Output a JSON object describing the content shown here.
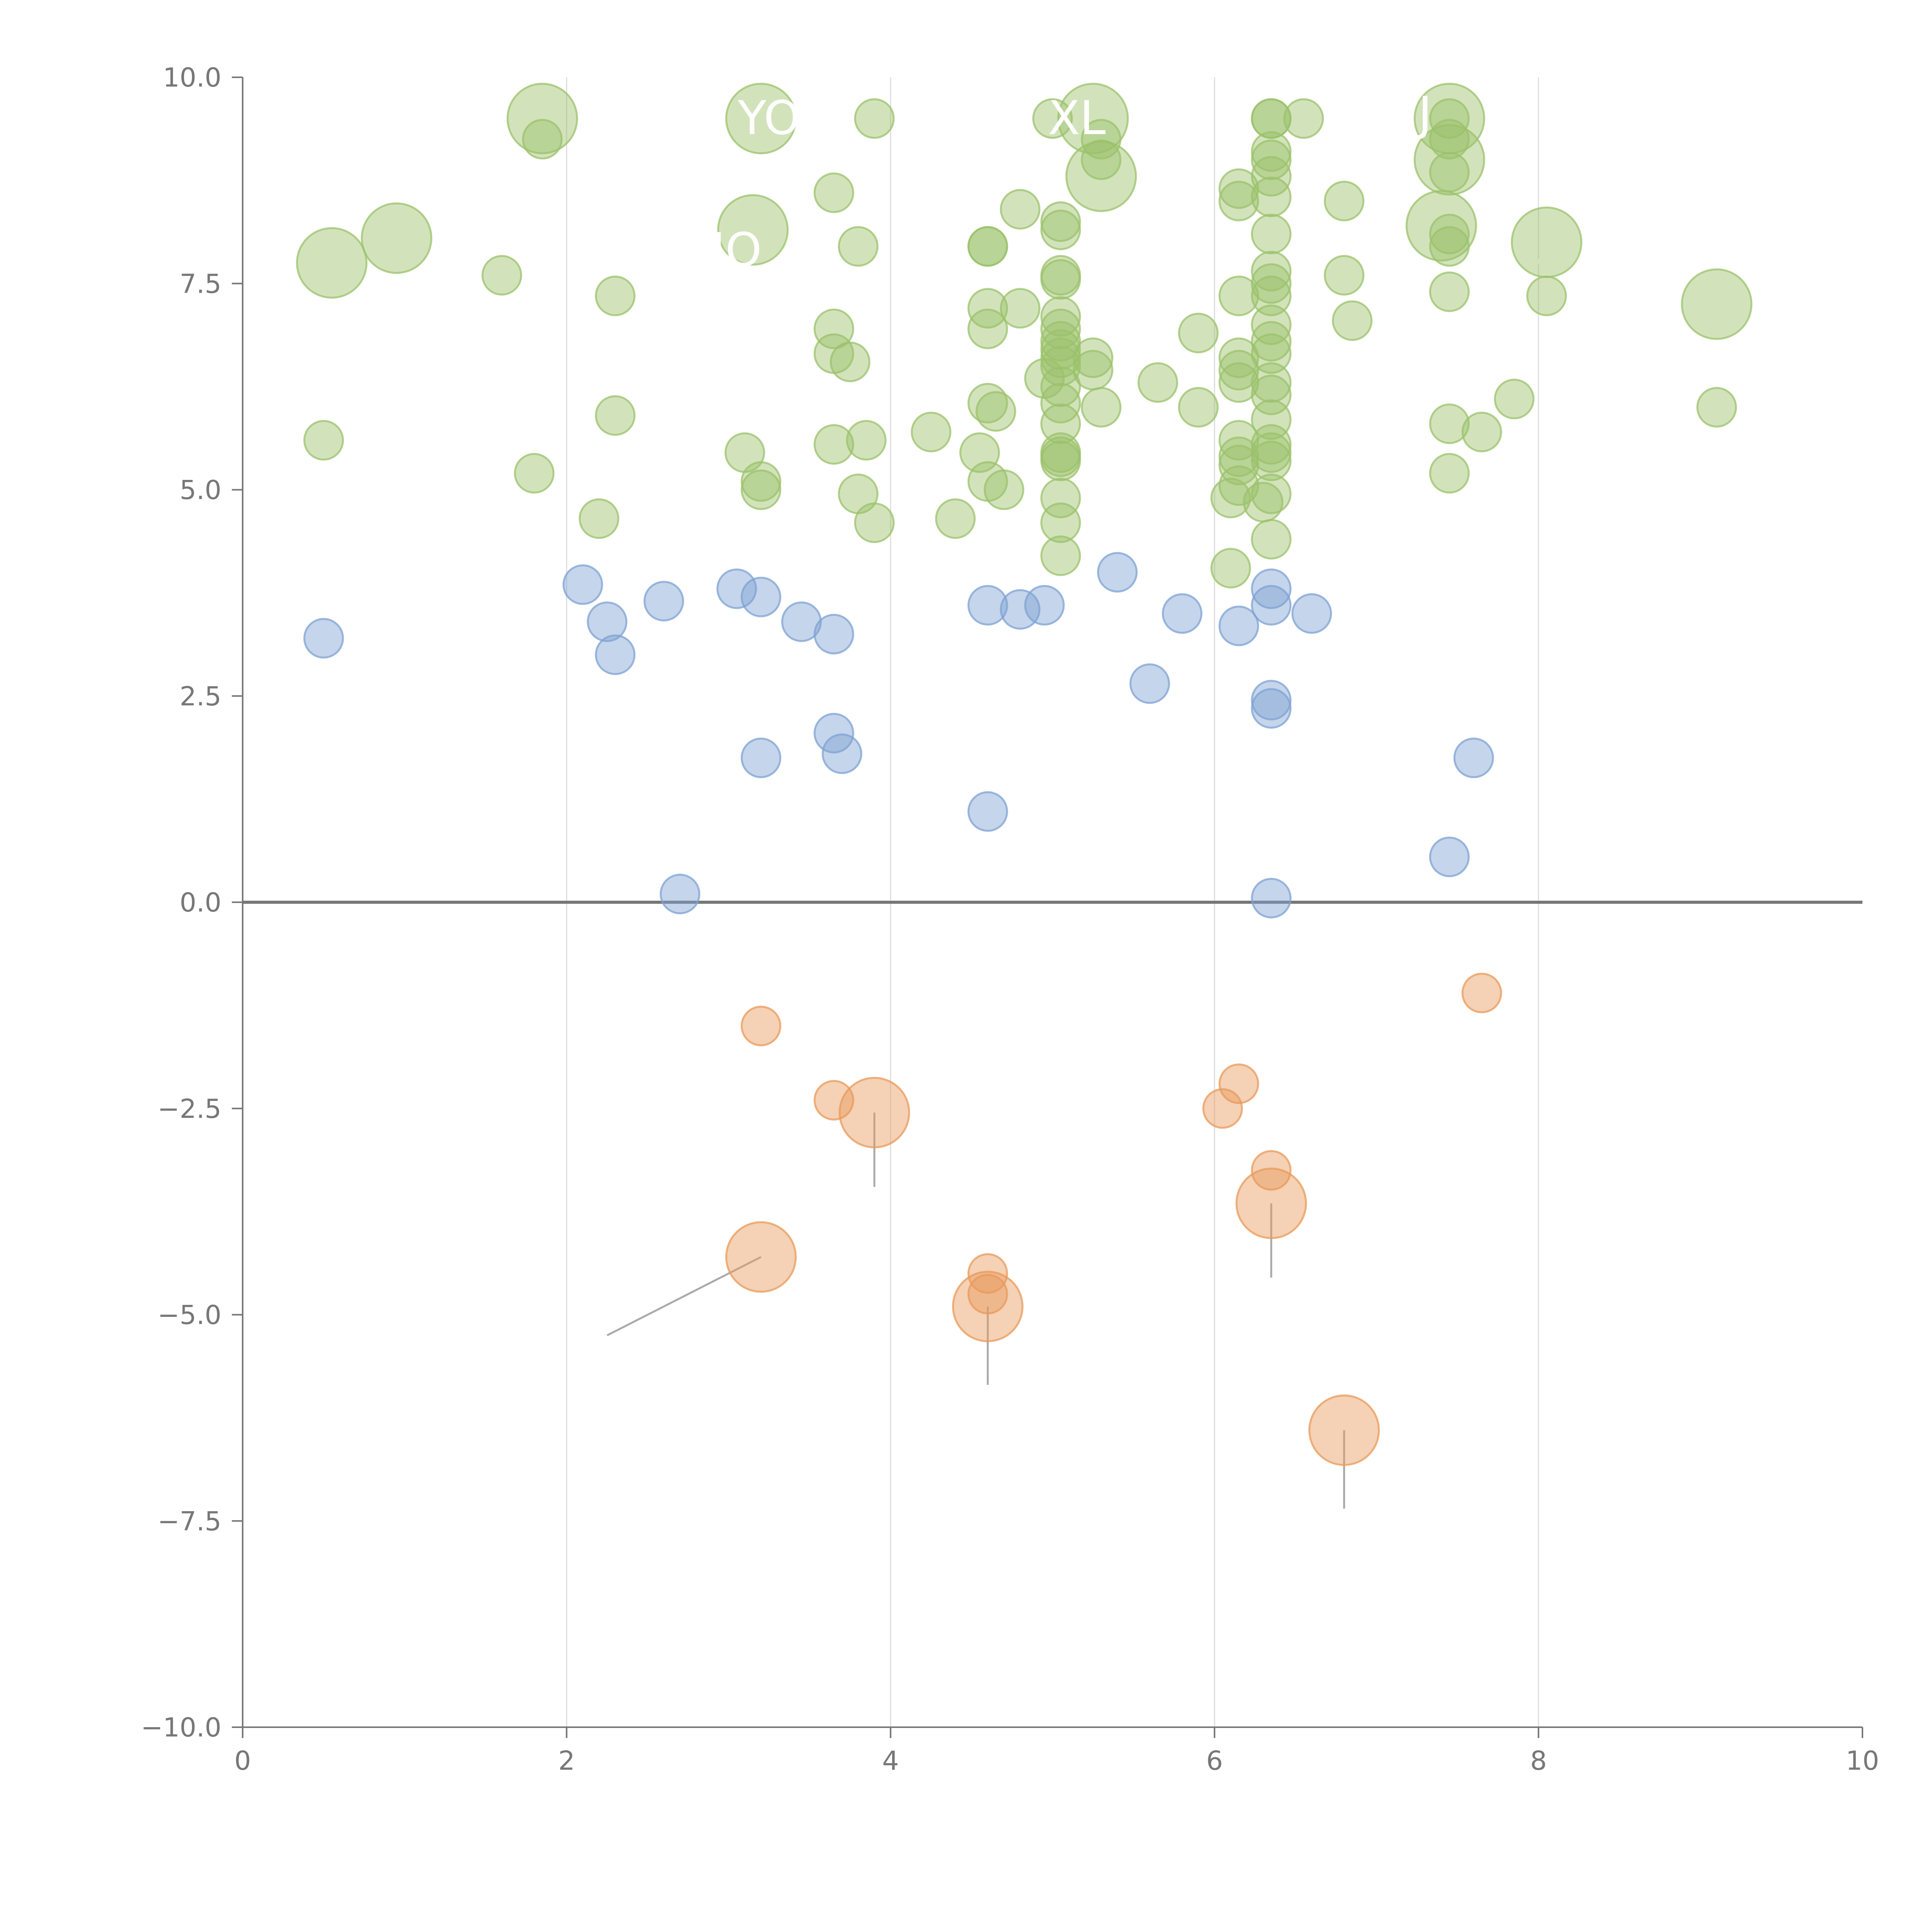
{
  "chart_data": {
    "type": "scatter",
    "title": "",
    "xlabel": "",
    "ylabel": "",
    "xlim": [
      0,
      10
    ],
    "ylim": [
      -10,
      10
    ],
    "x_ticks": [
      0,
      2,
      4,
      6,
      8,
      10
    ],
    "y_ticks": [
      -10.0,
      -7.5,
      -5.0,
      -2.5,
      0.0,
      2.5,
      5.0,
      7.5,
      10.0
    ],
    "x_tick_labels": [
      "0",
      "2",
      "4",
      "6",
      "8",
      "10"
    ],
    "y_tick_labels": [
      "−10.0",
      "−7.5",
      "−5.0",
      "−2.5",
      "0.0",
      "2.5",
      "5.0",
      "7.5",
      "10.0"
    ],
    "grid": "vertical",
    "zero_line": 0,
    "colors": {
      "green": "#9bc26b",
      "blue": "#7ea1d3",
      "orange": "#e8995a",
      "axis": "#777777",
      "grid": "#dddddd",
      "leader": "#aaaaaa",
      "leader_light": "#ffffff"
    },
    "series": [
      {
        "name": "green",
        "color": "#9bc26b",
        "points": [
          [
            1.85,
            9.5,
            2
          ],
          [
            3.2,
            9.5,
            2
          ],
          [
            5.25,
            9.5,
            2
          ],
          [
            7.45,
            9.5,
            2
          ],
          [
            0.55,
            7.75,
            2
          ],
          [
            0.95,
            8.05,
            2
          ],
          [
            3.15,
            8.15,
            2
          ],
          [
            5.3,
            8.8,
            2
          ],
          [
            7.4,
            8.2,
            2
          ],
          [
            7.45,
            9.0,
            2
          ],
          [
            8.05,
            8.0,
            2
          ],
          [
            9.1,
            7.25,
            2
          ],
          [
            1.85,
            9.25,
            1
          ],
          [
            3.9,
            9.5,
            1
          ],
          [
            5.0,
            9.5,
            1
          ],
          [
            5.3,
            9.25,
            1
          ],
          [
            5.3,
            9.0,
            1
          ],
          [
            6.35,
            9.5,
            1
          ],
          [
            6.35,
            9.5,
            1
          ],
          [
            6.55,
            9.5,
            1
          ],
          [
            7.45,
            9.5,
            1
          ],
          [
            7.45,
            9.25,
            1
          ],
          [
            6.35,
            9.1,
            1
          ],
          [
            6.35,
            9.0,
            1
          ],
          [
            6.35,
            8.8,
            1
          ],
          [
            6.35,
            8.55,
            1
          ],
          [
            6.15,
            8.65,
            1
          ],
          [
            6.15,
            8.5,
            1
          ],
          [
            6.8,
            8.5,
            1
          ],
          [
            7.45,
            8.85,
            1
          ],
          [
            3.65,
            8.6,
            1
          ],
          [
            4.8,
            8.4,
            1
          ],
          [
            5.05,
            8.25,
            1
          ],
          [
            5.05,
            8.15,
            1
          ],
          [
            6.35,
            8.1,
            1
          ],
          [
            7.45,
            8.1,
            1
          ],
          [
            7.45,
            7.95,
            1
          ],
          [
            1.6,
            7.6,
            1
          ],
          [
            2.3,
            7.35,
            1
          ],
          [
            3.8,
            7.95,
            1
          ],
          [
            4.6,
            7.95,
            1
          ],
          [
            4.6,
            7.95,
            1
          ],
          [
            5.05,
            7.6,
            1
          ],
          [
            5.05,
            7.55,
            1
          ],
          [
            6.15,
            7.35,
            1
          ],
          [
            6.35,
            7.65,
            1
          ],
          [
            6.35,
            7.5,
            1
          ],
          [
            6.35,
            7.35,
            1
          ],
          [
            6.8,
            7.6,
            1
          ],
          [
            7.45,
            7.4,
            1
          ],
          [
            8.05,
            7.35,
            1
          ],
          [
            4.6,
            7.2,
            1
          ],
          [
            4.8,
            7.2,
            1
          ],
          [
            5.05,
            7.1,
            1
          ],
          [
            5.05,
            6.95,
            1
          ],
          [
            5.05,
            6.8,
            1
          ],
          [
            5.05,
            6.7,
            1
          ],
          [
            6.35,
            7.0,
            1
          ],
          [
            6.85,
            7.05,
            1
          ],
          [
            3.65,
            6.95,
            1
          ],
          [
            4.6,
            6.95,
            1
          ],
          [
            5.9,
            6.9,
            1
          ],
          [
            3.65,
            6.65,
            1
          ],
          [
            3.75,
            6.55,
            1
          ],
          [
            5.05,
            6.6,
            1
          ],
          [
            5.05,
            6.5,
            1
          ],
          [
            5.25,
            6.6,
            1
          ],
          [
            5.25,
            6.45,
            1
          ],
          [
            6.15,
            6.6,
            1
          ],
          [
            6.15,
            6.45,
            1
          ],
          [
            6.15,
            6.3,
            1
          ],
          [
            6.35,
            6.8,
            1
          ],
          [
            6.35,
            6.65,
            1
          ],
          [
            6.35,
            6.3,
            1
          ],
          [
            6.35,
            6.15,
            1
          ],
          [
            4.95,
            6.35,
            1
          ],
          [
            5.05,
            6.25,
            1
          ],
          [
            5.05,
            6.05,
            1
          ],
          [
            5.65,
            6.3,
            1
          ],
          [
            5.3,
            6.0,
            1
          ],
          [
            5.9,
            6.0,
            1
          ],
          [
            4.6,
            6.05,
            1
          ],
          [
            4.65,
            5.95,
            1
          ],
          [
            7.85,
            6.1,
            1
          ],
          [
            9.1,
            6.0,
            1
          ],
          [
            2.3,
            5.9,
            1
          ],
          [
            5.05,
            5.8,
            1
          ],
          [
            6.35,
            5.85,
            1
          ],
          [
            7.45,
            5.8,
            1
          ],
          [
            7.65,
            5.7,
            1
          ],
          [
            4.25,
            5.7,
            1
          ],
          [
            0.5,
            5.6,
            1
          ],
          [
            3.85,
            5.6,
            1
          ],
          [
            6.15,
            5.6,
            1
          ],
          [
            6.35,
            5.55,
            1
          ],
          [
            6.35,
            5.45,
            1
          ],
          [
            3.1,
            5.45,
            1
          ],
          [
            3.65,
            5.55,
            1
          ],
          [
            4.55,
            5.45,
            1
          ],
          [
            5.05,
            5.45,
            1
          ],
          [
            5.05,
            5.4,
            1
          ],
          [
            5.05,
            5.35,
            1
          ],
          [
            6.15,
            5.4,
            1
          ],
          [
            6.15,
            5.3,
            1
          ],
          [
            6.35,
            5.35,
            1
          ],
          [
            1.8,
            5.2,
            1
          ],
          [
            3.2,
            5.1,
            1
          ],
          [
            3.2,
            5.0,
            1
          ],
          [
            4.6,
            5.1,
            1
          ],
          [
            4.7,
            5.0,
            1
          ],
          [
            3.8,
            4.95,
            1
          ],
          [
            5.05,
            4.9,
            1
          ],
          [
            6.1,
            4.9,
            1
          ],
          [
            6.15,
            5.05,
            1
          ],
          [
            6.35,
            4.95,
            1
          ],
          [
            6.3,
            4.85,
            1
          ],
          [
            7.45,
            5.2,
            1
          ],
          [
            2.2,
            4.65,
            1
          ],
          [
            3.9,
            4.6,
            1
          ],
          [
            4.4,
            4.65,
            1
          ],
          [
            5.05,
            4.6,
            1
          ],
          [
            6.35,
            4.4,
            1
          ],
          [
            5.05,
            4.2,
            1
          ],
          [
            6.1,
            4.05,
            1
          ]
        ]
      },
      {
        "name": "blue",
        "color": "#7ea1d3",
        "points": [
          [
            2.1,
            3.85,
            1
          ],
          [
            5.4,
            4.0,
            1
          ],
          [
            3.05,
            3.8,
            1
          ],
          [
            3.2,
            3.7,
            1
          ],
          [
            6.35,
            3.8,
            1
          ],
          [
            6.35,
            3.6,
            1
          ],
          [
            2.6,
            3.65,
            1
          ],
          [
            4.6,
            3.6,
            1
          ],
          [
            4.8,
            3.55,
            1
          ],
          [
            4.95,
            3.6,
            1
          ],
          [
            5.8,
            3.5,
            1
          ],
          [
            6.6,
            3.5,
            1
          ],
          [
            2.25,
            3.4,
            1
          ],
          [
            3.45,
            3.4,
            1
          ],
          [
            6.15,
            3.35,
            1
          ],
          [
            3.65,
            3.25,
            1
          ],
          [
            0.5,
            3.2,
            1
          ],
          [
            2.3,
            3.0,
            1
          ],
          [
            5.6,
            2.65,
            1
          ],
          [
            6.35,
            2.45,
            1
          ],
          [
            6.35,
            2.35,
            1
          ],
          [
            3.65,
            2.05,
            1
          ],
          [
            3.7,
            1.8,
            1
          ],
          [
            3.2,
            1.75,
            1
          ],
          [
            7.6,
            1.75,
            1
          ],
          [
            4.6,
            1.1,
            1
          ],
          [
            7.45,
            0.55,
            1
          ],
          [
            2.7,
            0.1,
            1
          ],
          [
            6.35,
            0.05,
            1
          ]
        ]
      },
      {
        "name": "orange",
        "color": "#e8995a",
        "points": [
          [
            7.65,
            -1.1,
            1
          ],
          [
            3.2,
            -1.5,
            1
          ],
          [
            6.15,
            -2.2,
            1
          ],
          [
            3.65,
            -2.4,
            1
          ],
          [
            6.05,
            -2.5,
            1
          ],
          [
            3.9,
            -2.55,
            2
          ],
          [
            6.35,
            -3.25,
            1
          ],
          [
            6.35,
            -3.65,
            2
          ],
          [
            3.2,
            -4.3,
            2
          ],
          [
            4.6,
            -4.5,
            1
          ],
          [
            4.6,
            -4.75,
            1
          ],
          [
            4.6,
            -4.9,
            2
          ],
          [
            6.8,
            -6.4,
            2
          ]
        ]
      }
    ],
    "leader_lines": [
      {
        "from": [
          3.9,
          -2.55
        ],
        "to": [
          3.9,
          -3.45
        ],
        "color": "#aaaaaa"
      },
      {
        "from": [
          6.35,
          -3.65
        ],
        "to": [
          6.35,
          -4.55
        ],
        "color": "#aaaaaa"
      },
      {
        "from": [
          3.2,
          -4.3
        ],
        "to": [
          2.25,
          -5.25
        ],
        "color": "#aaaaaa"
      },
      {
        "from": [
          4.6,
          -4.9
        ],
        "to": [
          4.6,
          -5.85
        ],
        "color": "#aaaaaa"
      },
      {
        "from": [
          6.8,
          -6.4
        ],
        "to": [
          6.8,
          -7.35
        ],
        "color": "#aaaaaa"
      },
      {
        "from": [
          0.55,
          7.75
        ],
        "to": [
          0.7,
          7.35
        ],
        "color": "#ffffff"
      },
      {
        "from": [
          0.95,
          8.05
        ],
        "to": [
          0.9,
          7.55
        ],
        "color": "#ffffff"
      },
      {
        "from": [
          7.4,
          8.2
        ],
        "to": [
          7.75,
          7.95
        ],
        "color": "#ffffff"
      },
      {
        "from": [
          8.05,
          8.0
        ],
        "to": [
          7.9,
          7.3
        ],
        "color": "#ffffff"
      },
      {
        "from": [
          9.1,
          7.25
        ],
        "to": [
          9.05,
          6.55
        ],
        "color": "#ffffff"
      },
      {
        "from": [
          3.2,
          9.5
        ],
        "to": [
          3.15,
          8.6
        ],
        "color": "#ffffff"
      },
      {
        "from": [
          5.3,
          8.8
        ],
        "to": [
          4.55,
          8.6
        ],
        "color": "#ffffff"
      }
    ],
    "annotations": [
      {
        "text": "YO",
        "x": 3.25,
        "y": 9.5,
        "color": "#ffffff"
      },
      {
        "text": "XL",
        "x": 5.15,
        "y": 9.5,
        "color": "#ffffff"
      },
      {
        "text": "J",
        "x": 7.3,
        "y": 9.55,
        "color": "#ffffff"
      },
      {
        "text": "IO",
        "x": 3.05,
        "y": 7.9,
        "color": "#ffffff"
      }
    ]
  }
}
